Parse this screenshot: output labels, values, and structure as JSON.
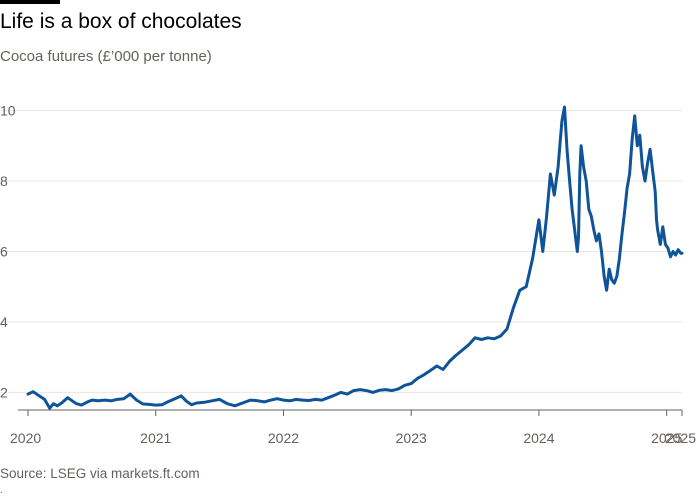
{
  "header": {
    "title": "Life is a box of chocolates",
    "subtitle": "Cocoa futures (£’000 per tonne)"
  },
  "footer": {
    "source": "Source: LSEG via markets.ft.com",
    "dot": "."
  },
  "colors": {
    "line": "#0f5499",
    "grid": "#ebe6e0",
    "axis": "#66605c"
  },
  "chart_data": {
    "type": "line",
    "title": "Life is a box of chocolates",
    "ylabel": "Cocoa futures (£’000 per tonne)",
    "xlabel": "",
    "ylim": [
      1.5,
      10.3
    ],
    "xlim": [
      2020.0,
      2025.12
    ],
    "y_ticks": [
      2,
      4,
      6,
      8,
      10
    ],
    "y_tick_labels": [
      "2",
      "4",
      "6",
      "8",
      "10"
    ],
    "x_ticks": [
      2020.0,
      2021.0,
      2022.0,
      2023.0,
      2024.0,
      2025.0,
      2025.12
    ],
    "x_tick_labels": [
      "2020",
      "2021",
      "2022",
      "2023",
      "2024",
      "2025",
      "2025"
    ],
    "grid": true,
    "series": [
      {
        "name": "Cocoa futures",
        "x": [
          2020.0,
          2020.04,
          2020.08,
          2020.13,
          2020.17,
          2020.2,
          2020.23,
          2020.27,
          2020.31,
          2020.35,
          2020.38,
          2020.42,
          2020.46,
          2020.5,
          2020.55,
          2020.6,
          2020.65,
          2020.7,
          2020.75,
          2020.8,
          2020.85,
          2020.9,
          2020.95,
          2021.0,
          2021.05,
          2021.1,
          2021.15,
          2021.2,
          2021.24,
          2021.28,
          2021.32,
          2021.38,
          2021.44,
          2021.5,
          2021.56,
          2021.62,
          2021.68,
          2021.74,
          2021.8,
          2021.85,
          2021.9,
          2021.95,
          2022.0,
          2022.05,
          2022.1,
          2022.15,
          2022.2,
          2022.25,
          2022.3,
          2022.35,
          2022.4,
          2022.45,
          2022.5,
          2022.55,
          2022.6,
          2022.65,
          2022.7,
          2022.75,
          2022.8,
          2022.85,
          2022.9,
          2022.95,
          2023.0,
          2023.05,
          2023.1,
          2023.15,
          2023.2,
          2023.25,
          2023.3,
          2023.35,
          2023.4,
          2023.45,
          2023.5,
          2023.55,
          2023.6,
          2023.65,
          2023.7,
          2023.75,
          2023.8,
          2023.85,
          2023.9,
          2023.95,
          2024.0,
          2024.03,
          2024.06,
          2024.09,
          2024.12,
          2024.15,
          2024.18,
          2024.2,
          2024.22,
          2024.24,
          2024.26,
          2024.28,
          2024.3,
          2024.31,
          2024.32,
          2024.33,
          2024.35,
          2024.37,
          2024.39,
          2024.41,
          2024.43,
          2024.45,
          2024.47,
          2024.49,
          2024.51,
          2024.53,
          2024.55,
          2024.57,
          2024.59,
          2024.61,
          2024.63,
          2024.65,
          2024.67,
          2024.69,
          2024.71,
          2024.73,
          2024.75,
          2024.77,
          2024.79,
          2024.81,
          2024.83,
          2024.85,
          2024.87,
          2024.89,
          2024.91,
          2024.92,
          2024.93,
          2024.95,
          2024.97,
          2024.99,
          2025.01,
          2025.03,
          2025.05,
          2025.07,
          2025.09,
          2025.11,
          2025.12
        ],
        "values": [
          1.95,
          2.02,
          1.92,
          1.8,
          1.55,
          1.68,
          1.62,
          1.72,
          1.85,
          1.75,
          1.68,
          1.64,
          1.72,
          1.78,
          1.76,
          1.78,
          1.76,
          1.8,
          1.82,
          1.95,
          1.78,
          1.67,
          1.66,
          1.64,
          1.65,
          1.74,
          1.82,
          1.9,
          1.75,
          1.65,
          1.7,
          1.72,
          1.76,
          1.8,
          1.68,
          1.62,
          1.7,
          1.78,
          1.76,
          1.73,
          1.78,
          1.82,
          1.78,
          1.76,
          1.8,
          1.78,
          1.77,
          1.8,
          1.78,
          1.85,
          1.92,
          2.0,
          1.95,
          2.05,
          2.08,
          2.05,
          2.0,
          2.06,
          2.08,
          2.05,
          2.1,
          2.2,
          2.25,
          2.4,
          2.5,
          2.62,
          2.75,
          2.65,
          2.88,
          3.05,
          3.2,
          3.35,
          3.55,
          3.5,
          3.55,
          3.52,
          3.6,
          3.8,
          4.4,
          4.9,
          5.0,
          5.8,
          6.9,
          6.0,
          7.0,
          8.2,
          7.6,
          8.4,
          9.7,
          10.1,
          8.9,
          8.0,
          7.2,
          6.6,
          6.0,
          6.4,
          8.2,
          9.0,
          8.4,
          8.0,
          7.2,
          7.0,
          6.6,
          6.3,
          6.5,
          6.0,
          5.3,
          4.9,
          5.5,
          5.2,
          5.1,
          5.3,
          5.8,
          6.5,
          7.1,
          7.8,
          8.2,
          9.2,
          9.85,
          9.0,
          9.3,
          8.4,
          8.0,
          8.5,
          8.9,
          8.3,
          7.7,
          6.9,
          6.6,
          6.2,
          6.7,
          6.2,
          6.1,
          5.85,
          6.0,
          5.9,
          6.05,
          5.95,
          5.95
        ]
      }
    ]
  }
}
